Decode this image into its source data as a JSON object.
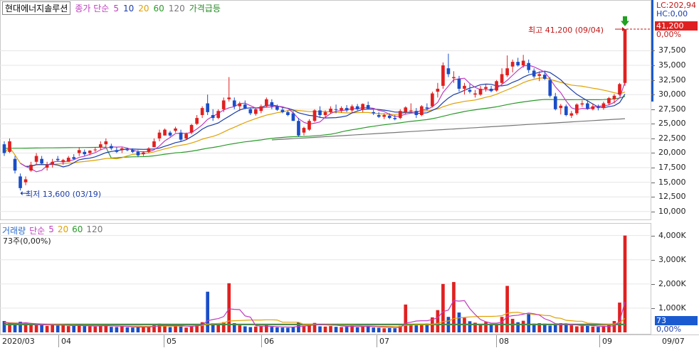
{
  "header": {
    "stock_name": "현대에너지솔루션",
    "study_label": "종가 단순",
    "ma_periods": [
      "5",
      "10",
      "20",
      "60",
      "120"
    ],
    "ma_colors": [
      "#c03cc0",
      "#1a3ca8",
      "#e0a000",
      "#2a9a2a",
      "#777777"
    ],
    "extra_label": "가격급등"
  },
  "volume_header": {
    "label": "거래량",
    "study_label": "단순",
    "ma_periods": [
      "5",
      "20",
      "60",
      "120"
    ],
    "ma_colors": [
      "#c03cc0",
      "#e0a000",
      "#2a9a2a",
      "#777777"
    ],
    "sub_label": "73주(0,00%)"
  },
  "price_axis": {
    "ticks": [
      "37,500",
      "35,000",
      "32,500",
      "30,000",
      "27,500",
      "25,000",
      "22,500",
      "20,000",
      "17,500",
      "15,000",
      "12,500",
      "10,000"
    ],
    "tick_values": [
      37500,
      35000,
      32500,
      30000,
      27500,
      25000,
      22500,
      20000,
      17500,
      15000,
      12500,
      10000
    ],
    "pct_label": "0,00%",
    "lc_label": "LC:202,94",
    "hc_label": "HC:0,00",
    "current_price": "41,200"
  },
  "volume_axis": {
    "ticks": [
      "4,000K",
      "3,000K",
      "2,000K",
      "1,000K"
    ],
    "tick_values": [
      4000,
      3000,
      2000,
      1000
    ],
    "current_volume": "73",
    "pct_label": "0,00%"
  },
  "annotations": {
    "high": "최고 41,200 (09/04)",
    "low": "최저 13,600 (03/19)"
  },
  "date_axis": {
    "labels": [
      "2020/03",
      "04",
      "05",
      "06",
      "07",
      "08",
      "09",
      "09/07"
    ]
  },
  "chart_data": {
    "type": "candlestick",
    "price_range": [
      9000,
      44000
    ],
    "volume_range": [
      0,
      4400
    ],
    "candles": [
      [
        21500,
        22000,
        19500,
        20000
      ],
      [
        20200,
        22500,
        20000,
        22000
      ],
      [
        19000,
        19500,
        16500,
        17000
      ],
      [
        16000,
        16500,
        13600,
        14000
      ],
      [
        15000,
        16000,
        14500,
        15500
      ],
      [
        17000,
        18500,
        16800,
        18000
      ],
      [
        18500,
        20000,
        18000,
        19500
      ],
      [
        19000,
        19500,
        18000,
        18200
      ],
      [
        17500,
        18500,
        17000,
        18000
      ],
      [
        18000,
        19000,
        17500,
        18500
      ],
      [
        19000,
        19500,
        18500,
        18800
      ],
      [
        18500,
        19000,
        18000,
        18800
      ],
      [
        18500,
        19500,
        18500,
        19200
      ],
      [
        19300,
        19800,
        18800,
        19000
      ],
      [
        20000,
        21000,
        19500,
        20500
      ],
      [
        20200,
        20600,
        19500,
        19800
      ],
      [
        20000,
        20500,
        19600,
        20400
      ],
      [
        20500,
        21000,
        20200,
        20600
      ],
      [
        21000,
        22000,
        20500,
        21500
      ],
      [
        21500,
        22500,
        21000,
        22000
      ],
      [
        21200,
        21600,
        20500,
        20800
      ],
      [
        20500,
        21000,
        20000,
        20200
      ],
      [
        20500,
        21000,
        20000,
        20800
      ],
      [
        20600,
        20900,
        20300,
        20500
      ],
      [
        20500,
        20800,
        20000,
        20200
      ],
      [
        20200,
        20500,
        19300,
        19600
      ],
      [
        19800,
        20300,
        19500,
        20100
      ],
      [
        20200,
        21000,
        20000,
        20800
      ],
      [
        21000,
        22500,
        21000,
        22000
      ],
      [
        22500,
        24000,
        22000,
        23500
      ],
      [
        23000,
        24200,
        23000,
        24000
      ],
      [
        23500,
        23800,
        22800,
        23000
      ],
      [
        23800,
        24500,
        23500,
        24200
      ],
      [
        23500,
        24000,
        22000,
        22300
      ],
      [
        22500,
        23500,
        22300,
        23300
      ],
      [
        23500,
        25000,
        23200,
        24800
      ],
      [
        25000,
        26500,
        24800,
        26000
      ],
      [
        26500,
        28000,
        26000,
        27700
      ],
      [
        28500,
        30000,
        26500,
        27000
      ],
      [
        26500,
        27500,
        25500,
        26000
      ],
      [
        26000,
        27500,
        25800,
        27200
      ],
      [
        27500,
        29500,
        27000,
        29000
      ],
      [
        29200,
        33000,
        28800,
        29500
      ],
      [
        29000,
        29500,
        27500,
        28000
      ],
      [
        28000,
        28800,
        27200,
        28500
      ],
      [
        28300,
        29000,
        27500,
        27700
      ],
      [
        27500,
        27800,
        26500,
        26800
      ],
      [
        26700,
        27800,
        26400,
        27500
      ],
      [
        27200,
        28300,
        26800,
        28000
      ],
      [
        28000,
        29500,
        27800,
        29200
      ],
      [
        28700,
        29200,
        27500,
        28000
      ],
      [
        28000,
        28300,
        27200,
        27400
      ],
      [
        27400,
        27800,
        26800,
        27000
      ],
      [
        27000,
        27300,
        26300,
        26500
      ],
      [
        26800,
        27200,
        25500,
        25500
      ],
      [
        25500,
        26000,
        22800,
        23000
      ],
      [
        23500,
        24500,
        23000,
        24300
      ],
      [
        24000,
        25800,
        23800,
        25500
      ],
      [
        25500,
        27500,
        25300,
        27300
      ],
      [
        27300,
        28000,
        26000,
        26500
      ],
      [
        26500,
        27300,
        26000,
        27000
      ],
      [
        27000,
        28000,
        26700,
        27600
      ],
      [
        27500,
        28300,
        26800,
        27400
      ],
      [
        27300,
        28000,
        26900,
        27700
      ],
      [
        27700,
        28200,
        27000,
        27300
      ],
      [
        27300,
        28300,
        26900,
        28000
      ],
      [
        28000,
        28400,
        27300,
        27500
      ],
      [
        27400,
        28500,
        27000,
        28400
      ],
      [
        28200,
        28800,
        27500,
        27600
      ],
      [
        27000,
        27400,
        26500,
        26800
      ],
      [
        26500,
        27000,
        26000,
        26200
      ],
      [
        26200,
        26800,
        25800,
        26500
      ],
      [
        26400,
        26800,
        25800,
        26000
      ],
      [
        26000,
        26500,
        25600,
        25800
      ],
      [
        26000,
        27500,
        25800,
        27200
      ],
      [
        27000,
        28000,
        26600,
        27800
      ],
      [
        27300,
        28500,
        27000,
        27300
      ],
      [
        27200,
        27700,
        26000,
        26500
      ],
      [
        26500,
        28200,
        26300,
        28000
      ],
      [
        27800,
        28500,
        27300,
        27600
      ],
      [
        28000,
        30500,
        27800,
        30200
      ],
      [
        30500,
        32000,
        29500,
        31000
      ],
      [
        31500,
        35500,
        31000,
        35000
      ],
      [
        34500,
        37000,
        33000,
        33500
      ],
      [
        32800,
        34000,
        32000,
        33000
      ],
      [
        32700,
        33200,
        30500,
        31000
      ],
      [
        31000,
        32000,
        30000,
        31500
      ],
      [
        30800,
        31800,
        30200,
        30500
      ],
      [
        30000,
        30800,
        29500,
        30200
      ],
      [
        30000,
        31500,
        29800,
        31000
      ],
      [
        31000,
        31800,
        30500,
        31300
      ],
      [
        31000,
        31500,
        30400,
        30600
      ],
      [
        30700,
        32500,
        30500,
        32300
      ],
      [
        32000,
        34500,
        31800,
        33500
      ],
      [
        33300,
        36700,
        33000,
        34500
      ],
      [
        34800,
        36000,
        33800,
        35600
      ],
      [
        35600,
        36300,
        34800,
        35000
      ],
      [
        35000,
        36800,
        34600,
        35800
      ],
      [
        35400,
        36000,
        33700,
        34200
      ],
      [
        34100,
        34500,
        32800,
        33100
      ],
      [
        33200,
        34000,
        32300,
        33500
      ],
      [
        33400,
        33900,
        32500,
        32700
      ],
      [
        32500,
        33000,
        29500,
        29800
      ],
      [
        29700,
        30300,
        27300,
        27500
      ],
      [
        27700,
        28400,
        26600,
        28100
      ],
      [
        28000,
        28300,
        26300,
        26500
      ],
      [
        26400,
        27200,
        26000,
        26800
      ],
      [
        26800,
        28500,
        26500,
        28300
      ],
      [
        28300,
        29000,
        27900,
        28500
      ],
      [
        28500,
        28900,
        27400,
        27600
      ],
      [
        27500,
        28500,
        27300,
        28000
      ],
      [
        27900,
        28300,
        27300,
        27700
      ],
      [
        27700,
        28800,
        27400,
        28500
      ],
      [
        28500,
        29600,
        28200,
        29400
      ],
      [
        29200,
        30100,
        28500,
        29800
      ],
      [
        30000,
        32000,
        29800,
        31800
      ],
      [
        32000,
        41200,
        31500,
        41200
      ]
    ],
    "volumes": [
      470,
      410,
      300,
      440,
      380,
      350,
      330,
      360,
      270,
      310,
      280,
      300,
      260,
      290,
      310,
      260,
      250,
      240,
      300,
      320,
      230,
      220,
      250,
      210,
      200,
      210,
      230,
      250,
      310,
      360,
      290,
      220,
      260,
      240,
      200,
      280,
      350,
      420,
      1680,
      380,
      310,
      420,
      2030,
      380,
      290,
      250,
      220,
      240,
      260,
      320,
      230,
      210,
      200,
      190,
      230,
      410,
      280,
      320,
      390,
      250,
      240,
      260,
      230,
      220,
      230,
      300,
      210,
      270,
      260,
      200,
      190,
      170,
      180,
      170,
      270,
      1150,
      310,
      290,
      330,
      360,
      620,
      920,
      2000,
      640,
      2080,
      820,
      600,
      460,
      400,
      350,
      430,
      300,
      330,
      640,
      1920,
      560,
      420,
      480,
      760,
      360,
      380,
      360,
      280,
      310,
      380,
      320,
      290,
      250,
      260,
      270,
      240,
      230,
      270,
      310,
      470,
      1230,
      4000
    ],
    "vol_ma5": [
      400,
      380,
      370,
      380,
      400,
      370,
      350,
      340,
      320,
      310,
      300,
      300,
      290,
      280,
      290,
      280,
      270,
      260,
      270,
      280,
      270,
      260,
      260,
      250,
      230,
      220,
      220,
      220,
      240,
      270,
      290,
      280,
      280,
      280,
      260,
      250,
      270,
      310,
      480,
      530,
      570,
      650,
      970,
      950,
      940,
      680,
      630,
      280,
      260,
      260,
      250,
      240,
      230,
      220,
      220,
      250,
      260,
      280,
      310,
      320,
      310,
      300,
      300,
      270,
      250,
      250,
      240,
      240,
      250,
      240,
      230,
      220,
      210,
      200,
      200,
      380,
      420,
      470,
      480,
      480,
      530,
      600,
      860,
      920,
      1310,
      1290,
      1310,
      980,
      740,
      530,
      440,
      380,
      380,
      420,
      650,
      690,
      710,
      750,
      800,
      770,
      720,
      560,
      480,
      360,
      340,
      360,
      320,
      310,
      280,
      300,
      280,
      260,
      250,
      250,
      270,
      460,
      1260
    ],
    "vol_ma20": [
      420,
      400,
      390,
      380,
      380,
      370,
      360,
      350,
      340,
      330,
      320,
      310,
      300,
      300,
      290,
      290,
      280,
      280,
      280,
      280,
      270,
      270,
      260,
      260,
      260,
      260,
      250,
      250,
      250,
      260,
      260,
      260,
      260,
      260,
      260,
      260,
      270,
      280,
      350,
      360,
      370,
      390,
      470,
      480,
      490,
      500,
      510,
      510,
      510,
      520,
      520,
      510,
      420,
      420,
      420,
      420,
      330,
      330,
      330,
      320,
      320,
      310,
      300,
      290,
      290,
      290,
      280,
      270,
      270,
      260,
      250,
      250,
      250,
      240,
      240,
      290,
      300,
      310,
      310,
      320,
      340,
      370,
      450,
      470,
      570,
      600,
      620,
      640,
      650,
      660,
      660,
      660,
      670,
      690,
      790,
      820,
      830,
      780,
      770,
      740,
      730,
      700,
      690,
      600,
      580,
      500,
      480,
      460,
      460,
      380,
      370,
      360,
      350,
      340,
      350,
      400,
      580
    ],
    "vol_ma60": 340,
    "vol_ma120": 310
  }
}
